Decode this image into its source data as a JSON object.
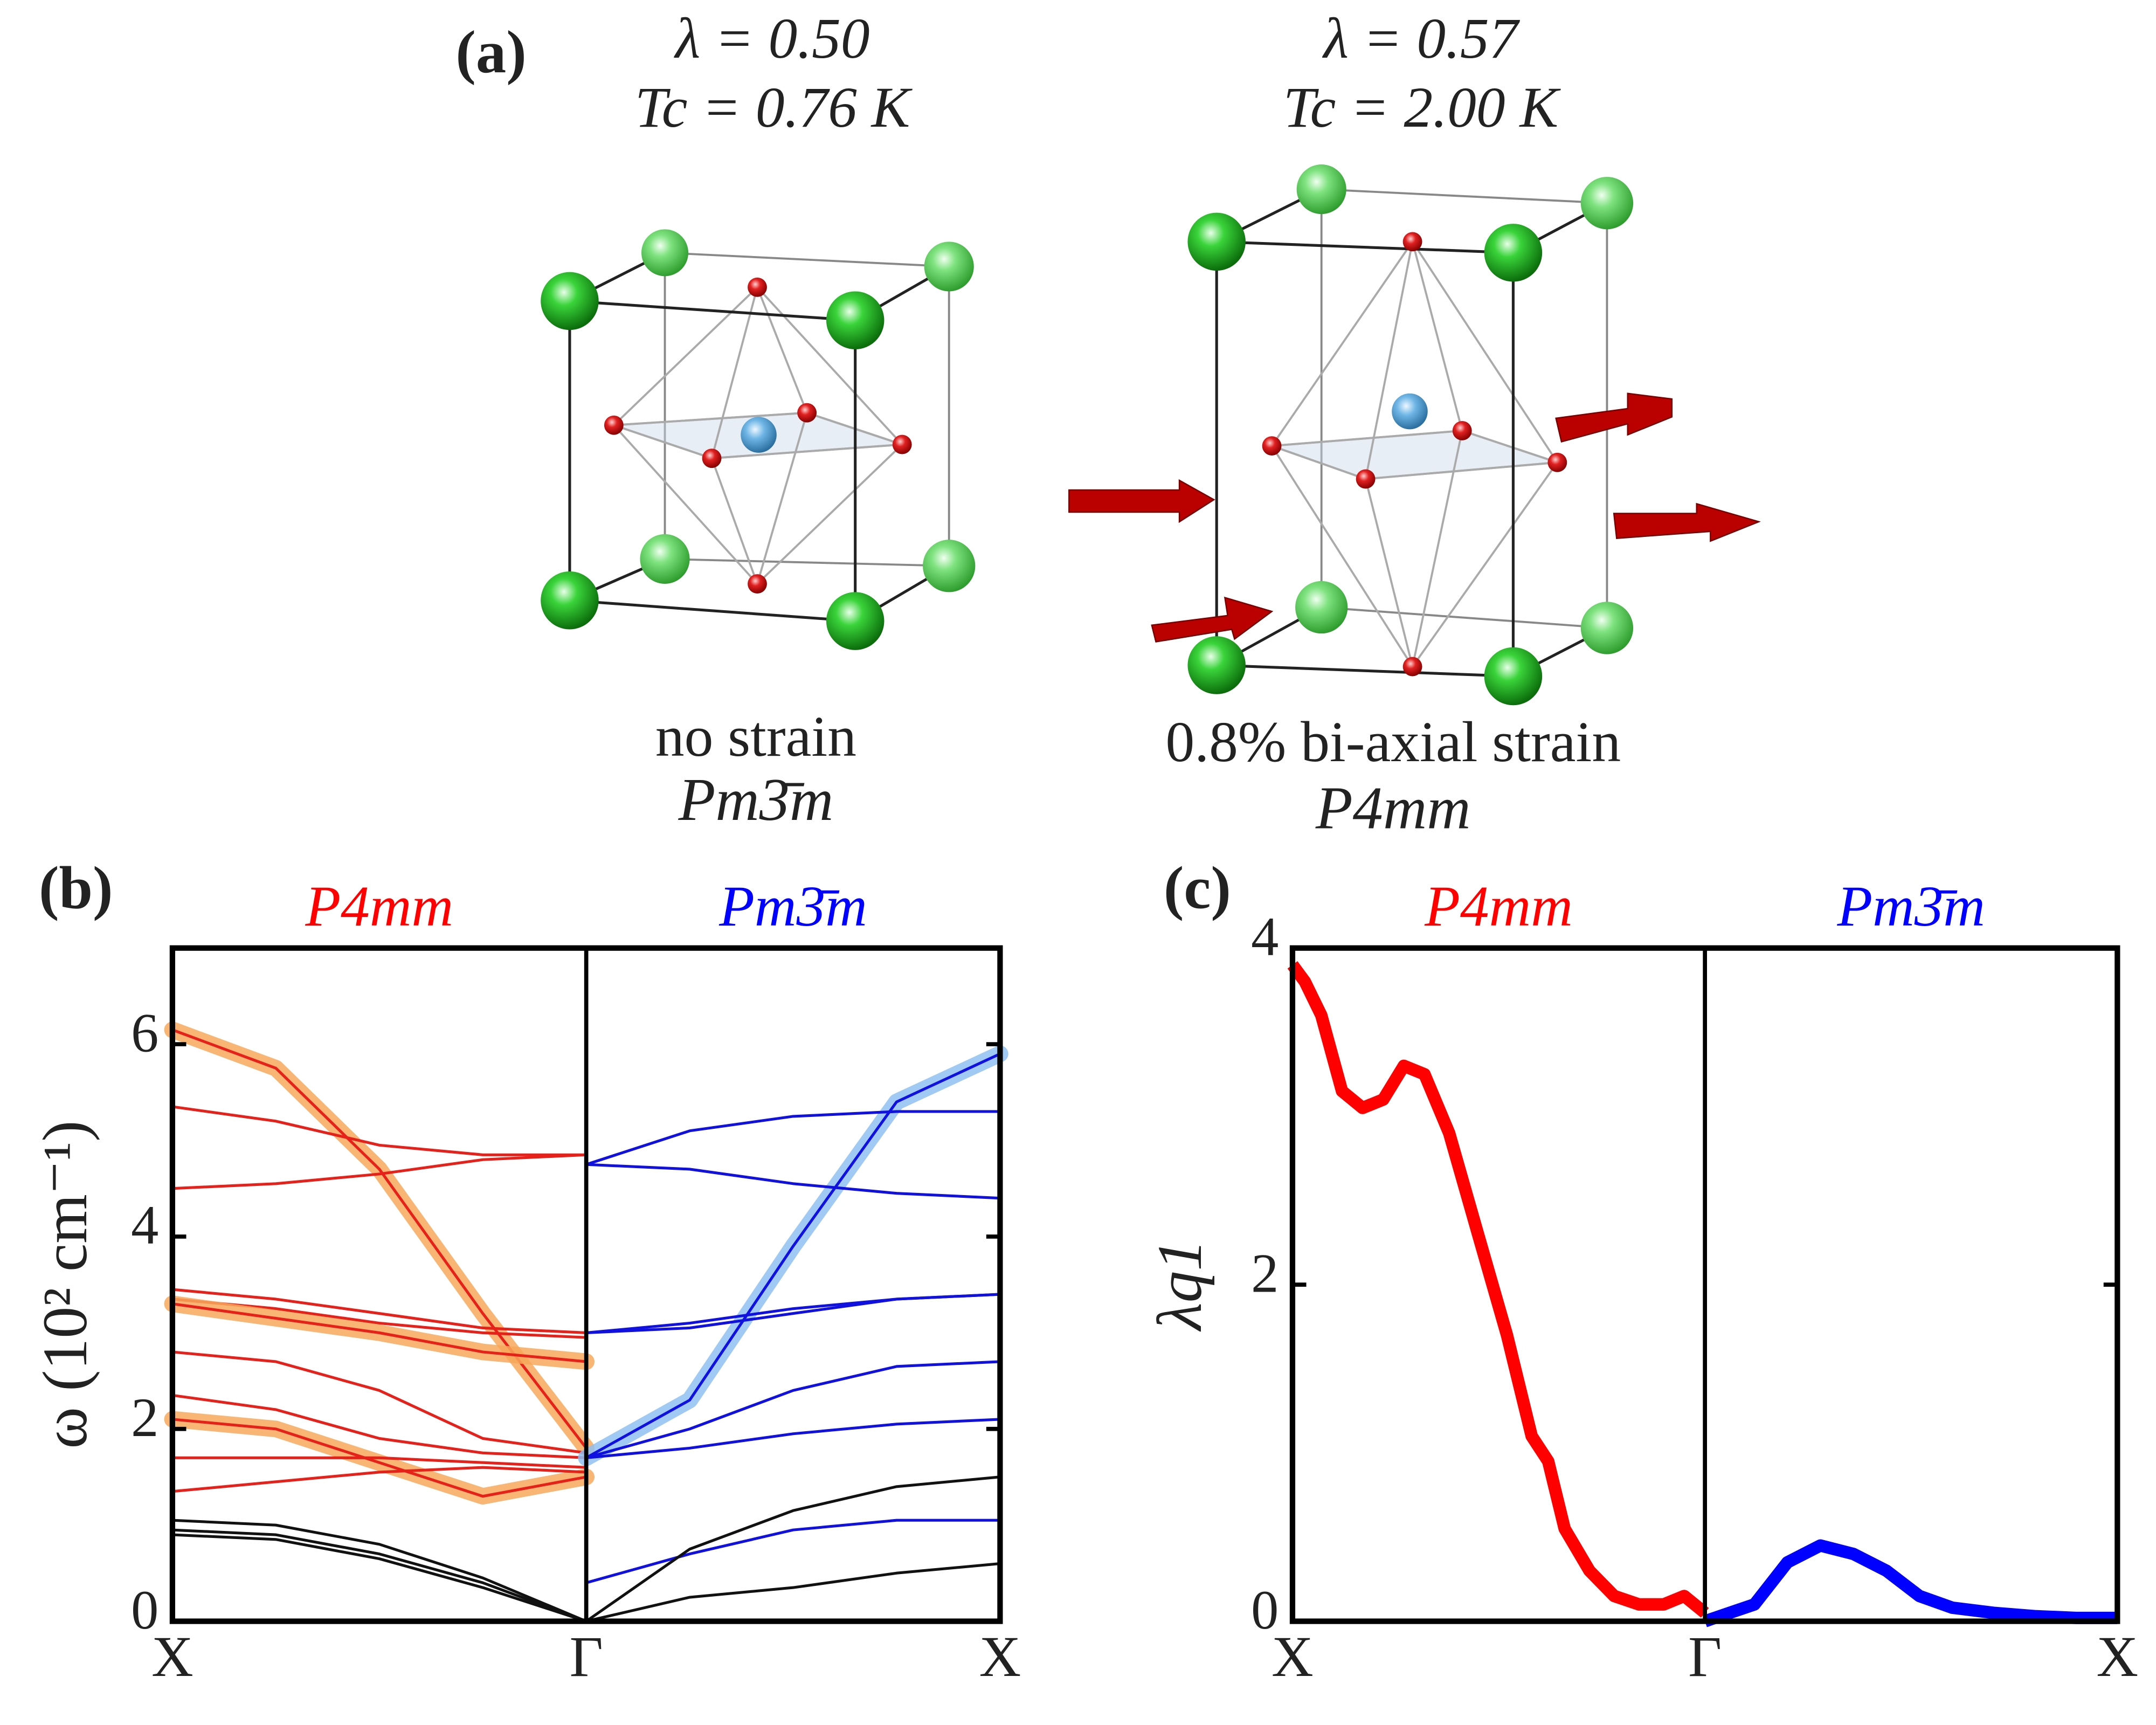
{
  "panel_a": {
    "label": "(a)",
    "left": {
      "lambda": "λ = 0.50",
      "tc": "Tc = 0.76 K",
      "caption": "no strain",
      "group": "Pm3̄m"
    },
    "right": {
      "lambda": "λ = 0.57",
      "tc": "Tc = 2.00 K",
      "caption": "0.8% bi-axial strain",
      "group": "P4mm"
    }
  },
  "chart_data": [
    {
      "type": "line",
      "label": "(b)",
      "ylabel": "ω (10² cm⁻¹)",
      "section_titles": [
        {
          "text": "P4mm",
          "color": "#ff0000"
        },
        {
          "text": "Pm3̄m",
          "color": "#0000ff"
        }
      ],
      "xlim": [
        0,
        2
      ],
      "xticks": [
        {
          "value": 0,
          "label": "X"
        },
        {
          "value": 1,
          "label": "Γ"
        },
        {
          "value": 2,
          "label": "X"
        }
      ],
      "ylim": [
        0,
        7
      ],
      "yticks": [
        0,
        2,
        4,
        6
      ],
      "x": [
        0,
        0.25,
        0.5,
        0.75,
        1,
        1.25,
        1.5,
        1.75,
        2
      ],
      "series": [
        {
          "color": "#e8201a",
          "highlight": "#f7a85a",
          "values": [
            6.15,
            5.75,
            4.7,
            3.2,
            1.8,
            null,
            null,
            null,
            null
          ]
        },
        {
          "color": "#e8201a",
          "values": [
            5.35,
            5.2,
            4.95,
            4.85,
            4.85,
            null,
            null,
            null,
            null
          ]
        },
        {
          "color": "#e8201a",
          "values": [
            4.5,
            4.55,
            4.65,
            4.8,
            4.85,
            null,
            null,
            null,
            null
          ]
        },
        {
          "color": "#e8201a",
          "values": [
            3.45,
            3.35,
            3.2,
            3.05,
            3.0,
            null,
            null,
            null,
            null
          ]
        },
        {
          "color": "#e8201a",
          "values": [
            3.35,
            3.25,
            3.1,
            3.0,
            2.95,
            null,
            null,
            null,
            null
          ]
        },
        {
          "color": "#e8201a",
          "highlight": "#f7a85a",
          "values": [
            3.3,
            3.15,
            3.0,
            2.8,
            2.7,
            null,
            null,
            null,
            null
          ]
        },
        {
          "color": "#e8201a",
          "values": [
            2.8,
            2.7,
            2.4,
            1.9,
            1.75,
            null,
            null,
            null,
            null
          ]
        },
        {
          "color": "#e8201a",
          "values": [
            2.35,
            2.2,
            1.9,
            1.75,
            1.7,
            null,
            null,
            null,
            null
          ]
        },
        {
          "color": "#e8201a",
          "highlight": "#f7a85a",
          "values": [
            2.1,
            2.0,
            1.65,
            1.3,
            1.5,
            null,
            null,
            null,
            null
          ]
        },
        {
          "color": "#e8201a",
          "values": [
            1.7,
            1.7,
            1.7,
            1.65,
            1.6,
            null,
            null,
            null,
            null
          ]
        },
        {
          "color": "#e8201a",
          "values": [
            1.35,
            1.45,
            1.55,
            1.6,
            1.55,
            null,
            null,
            null,
            null
          ]
        },
        {
          "color": "#111111",
          "values": [
            1.05,
            1.0,
            0.8,
            0.45,
            0,
            null,
            null,
            null,
            null
          ]
        },
        {
          "color": "#111111",
          "values": [
            0.95,
            0.9,
            0.7,
            0.4,
            0,
            null,
            null,
            null,
            null
          ]
        },
        {
          "color": "#111111",
          "values": [
            0.9,
            0.85,
            0.65,
            0.35,
            0,
            null,
            null,
            null,
            null
          ]
        },
        {
          "color": "#1010e0",
          "highlight": "#8fc0f2",
          "values": [
            null,
            null,
            null,
            null,
            1.7,
            2.3,
            3.9,
            5.4,
            5.9
          ]
        },
        {
          "color": "#1010e0",
          "values": [
            null,
            null,
            null,
            null,
            4.75,
            5.1,
            5.25,
            5.3,
            5.3
          ]
        },
        {
          "color": "#1010e0",
          "values": [
            null,
            null,
            null,
            null,
            4.75,
            4.7,
            4.55,
            4.45,
            4.4
          ]
        },
        {
          "color": "#1010e0",
          "values": [
            null,
            null,
            null,
            null,
            3.0,
            3.05,
            3.2,
            3.35,
            3.4
          ]
        },
        {
          "color": "#1010e0",
          "values": [
            null,
            null,
            null,
            null,
            3.0,
            3.1,
            3.25,
            3.35,
            3.4
          ]
        },
        {
          "color": "#1010e0",
          "values": [
            null,
            null,
            null,
            null,
            1.7,
            2.0,
            2.4,
            2.65,
            2.7
          ]
        },
        {
          "color": "#1010e0",
          "values": [
            null,
            null,
            null,
            null,
            1.7,
            1.8,
            1.95,
            2.05,
            2.1
          ]
        },
        {
          "color": "#1010e0",
          "values": [
            null,
            null,
            null,
            null,
            0.4,
            0.7,
            0.95,
            1.05,
            1.05
          ]
        },
        {
          "color": "#111111",
          "values": [
            null,
            null,
            null,
            null,
            0,
            0.75,
            1.15,
            1.4,
            1.5
          ]
        },
        {
          "color": "#111111",
          "values": [
            null,
            null,
            null,
            null,
            0,
            0.25,
            0.35,
            0.5,
            0.6
          ]
        }
      ]
    },
    {
      "type": "line",
      "label": "(c)",
      "ylabel": "λq1",
      "section_titles": [
        {
          "text": "P4mm",
          "color": "#ff0000"
        },
        {
          "text": "Pm3̄m",
          "color": "#0000ff"
        }
      ],
      "xlim": [
        0,
        2
      ],
      "xticks": [
        {
          "value": 0,
          "label": "X"
        },
        {
          "value": 1,
          "label": "Γ"
        },
        {
          "value": 2,
          "label": "X"
        }
      ],
      "ylim": [
        0,
        4
      ],
      "yticks": [
        0,
        2,
        4
      ],
      "series": [
        {
          "color": "#ff0000",
          "x": [
            0,
            0.03,
            0.07,
            0.12,
            0.17,
            0.22,
            0.27,
            0.32,
            0.38,
            0.45,
            0.52,
            0.58,
            0.62,
            0.66,
            0.72,
            0.78,
            0.84,
            0.9,
            0.95,
            1.0
          ],
          "values": [
            3.9,
            3.8,
            3.6,
            3.15,
            3.05,
            3.1,
            3.3,
            3.25,
            2.9,
            2.3,
            1.7,
            1.1,
            0.95,
            0.55,
            0.3,
            0.15,
            0.1,
            0.1,
            0.15,
            0.05
          ]
        },
        {
          "color": "#0000ff",
          "x": [
            1.0,
            1.06,
            1.12,
            1.2,
            1.28,
            1.36,
            1.44,
            1.52,
            1.6,
            1.7,
            1.8,
            1.9,
            2.0
          ],
          "values": [
            0,
            0.05,
            0.1,
            0.35,
            0.45,
            0.4,
            0.3,
            0.15,
            0.08,
            0.05,
            0.03,
            0.02,
            0.02
          ]
        }
      ]
    }
  ]
}
